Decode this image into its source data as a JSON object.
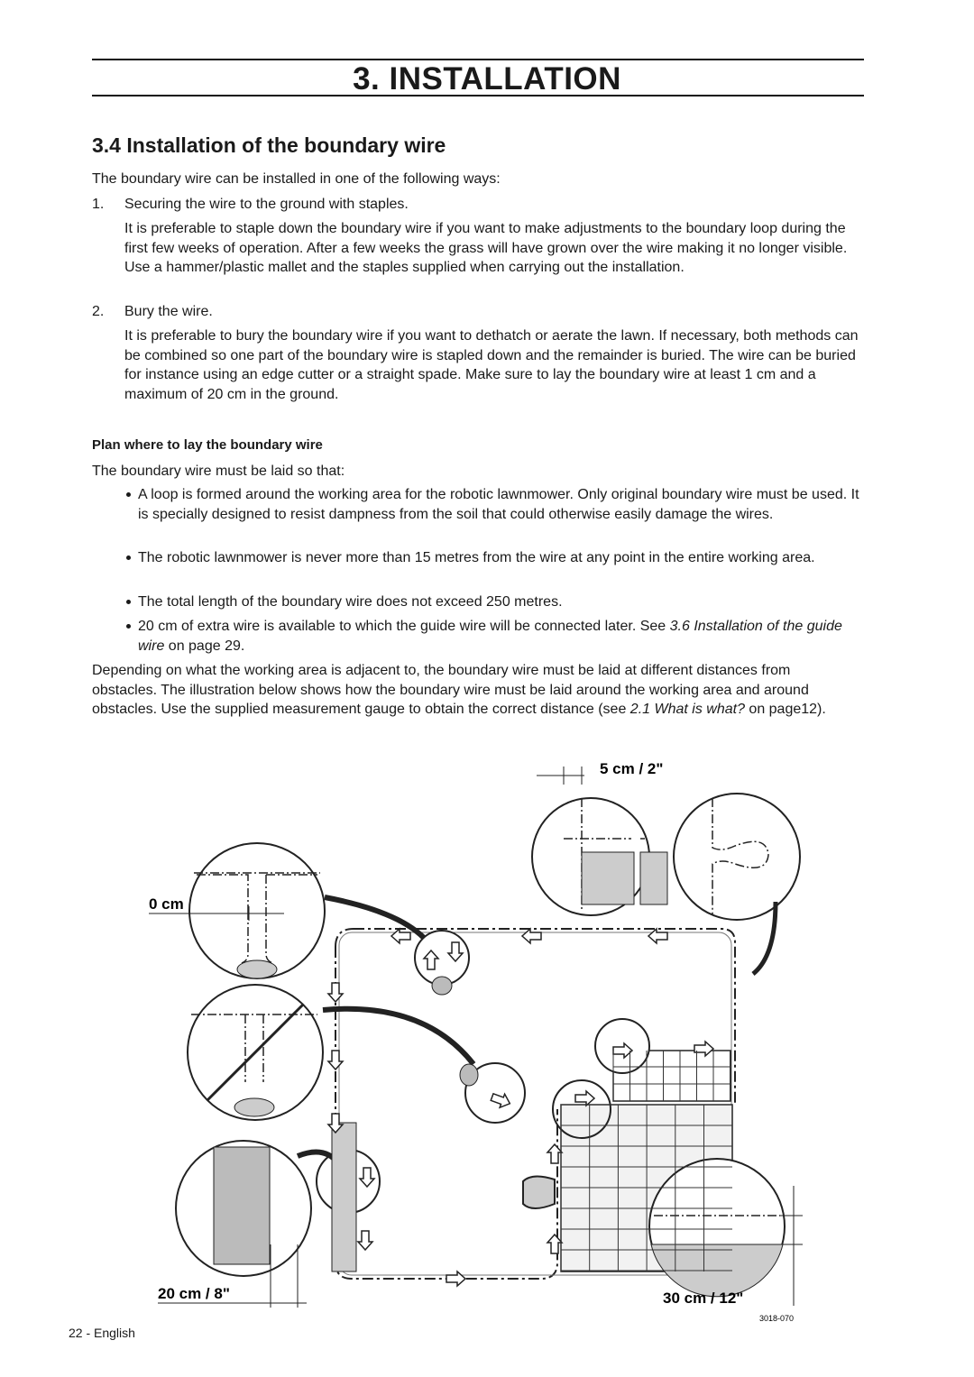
{
  "header": {
    "title": "3. INSTALLATION"
  },
  "section": {
    "title": "3.4 Installation of the boundary wire",
    "intro": "The boundary wire can be installed in one of the following ways:",
    "methods": [
      {
        "number": "1.",
        "title": "Securing the wire to the ground with staples.",
        "text": "It is preferable to staple down the boundary wire if you want to make adjustments to the boundary loop during the first few weeks of operation. After a few weeks the grass will have grown over the wire making it no longer visible. Use a hammer/plastic mallet and the staples supplied when carrying out the installation."
      },
      {
        "number": "2.",
        "title": "Bury the wire.",
        "text": "It is preferable to bury the boundary wire if you want to dethatch or aerate the lawn. If necessary, both methods can be combined so one part of the boundary wire is stapled down and the remainder is buried. The wire can be buried for instance using an edge cutter or a straight spade. Make sure to lay the boundary wire at least 1 cm and a maximum of 20 cm in the ground."
      }
    ]
  },
  "plan": {
    "subheading": "Plan where to lay the boundary wire",
    "lead": "The boundary wire must be laid so that:",
    "conditions": [
      {
        "text": "A loop is formed around the working area for the robotic lawnmower. Only original boundary wire must be used. It is specially designed to resist dampness from the soil that could otherwise easily damage the wires."
      },
      {
        "text": "The robotic lawnmower is never more than 15 metres from the wire at any point in the entire working area."
      },
      {
        "text": "The total length of the boundary wire does not exceed 250 metres."
      },
      {
        "text": "20 cm of extra wire is available to which the guide wire will be connected later. See ",
        "ref": "3.6 Installation of the guide wire",
        "after": " on page 29."
      }
    ],
    "closing": {
      "text": "Depending on what the working area is adjacent to, the boundary wire must be laid at different distances from obstacles. The illustration below shows how the boundary wire must be laid around the working area and around obstacles. Use the supplied measurement gauge to obtain the correct distance (see ",
      "ref": "2.1 What is what?",
      "after": " on page12)."
    }
  },
  "figure": {
    "labels": [
      "5 cm / 2\"",
      "0 cm",
      "20 cm / 8\"",
      "30 cm / 12\""
    ],
    "code": "3018-070"
  },
  "footer": {
    "page": "22 - English"
  }
}
